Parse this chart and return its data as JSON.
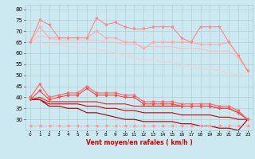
{
  "xlabel": "Vent moyen/en rafales ( km/h )",
  "x": [
    0,
    1,
    2,
    3,
    4,
    5,
    6,
    7,
    8,
    9,
    10,
    11,
    12,
    13,
    14,
    15,
    16,
    17,
    18,
    19,
    20,
    21,
    22,
    23
  ],
  "background_color": "#cce8f0",
  "grid_color": "#aacccc",
  "line_pink_top": [
    65,
    75,
    73,
    67,
    67,
    67,
    67,
    76,
    73,
    74,
    72,
    71,
    71,
    72,
    72,
    72,
    67,
    65,
    72,
    72,
    72,
    65,
    59,
    52
  ],
  "line_pink_mid1": [
    65,
    72,
    67,
    67,
    67,
    67,
    67,
    70,
    67,
    67,
    65,
    65,
    62,
    65,
    65,
    65,
    65,
    65,
    64,
    64,
    64,
    65,
    59,
    52
  ],
  "line_pink_mid2": [
    65,
    68,
    67,
    66,
    66,
    66,
    66,
    66,
    65,
    65,
    64,
    64,
    63,
    63,
    63,
    63,
    62,
    62,
    62,
    61,
    61,
    61,
    58,
    52
  ],
  "line_pink_low": [
    65,
    65,
    64,
    64,
    63,
    63,
    62,
    62,
    61,
    60,
    59,
    58,
    57,
    57,
    56,
    56,
    55,
    54,
    53,
    53,
    52,
    51,
    50,
    52
  ],
  "line_red_top": [
    40,
    46,
    40,
    41,
    42,
    42,
    45,
    42,
    42,
    42,
    41,
    41,
    38,
    38,
    38,
    38,
    37,
    37,
    37,
    37,
    36,
    36,
    34,
    30
  ],
  "line_red_mid1": [
    39,
    43,
    39,
    40,
    41,
    41,
    44,
    41,
    41,
    41,
    40,
    40,
    37,
    37,
    37,
    37,
    36,
    36,
    36,
    36,
    35,
    35,
    33,
    30
  ],
  "line_red_mid2": [
    39,
    40,
    38,
    38,
    38,
    38,
    38,
    38,
    37,
    37,
    37,
    36,
    36,
    36,
    36,
    36,
    36,
    36,
    36,
    36,
    35,
    35,
    33,
    30
  ],
  "line_red_low": [
    39,
    39,
    37,
    37,
    37,
    37,
    36,
    36,
    35,
    35,
    34,
    34,
    33,
    33,
    33,
    33,
    32,
    32,
    32,
    32,
    31,
    31,
    30,
    30
  ],
  "line_dark_red": [
    39,
    39,
    36,
    36,
    35,
    35,
    33,
    33,
    32,
    31,
    30,
    30,
    29,
    29,
    29,
    29,
    28,
    28,
    27,
    27,
    26,
    26,
    25,
    30
  ],
  "line_dashed_bottom": [
    27,
    27,
    27,
    27,
    27,
    27,
    27,
    27,
    27,
    27,
    27,
    27,
    27,
    27,
    27,
    27,
    27,
    27,
    27,
    27,
    27,
    27,
    27,
    27
  ],
  "ylim": [
    25,
    82
  ],
  "yticks": [
    30,
    35,
    40,
    45,
    50,
    55,
    60,
    65,
    70,
    75,
    80
  ],
  "color_pink_top": "#ff8888",
  "color_pink_mid1": "#ffaaaa",
  "color_pink_mid2": "#ffbbbb",
  "color_pink_low": "#ffcccc",
  "color_red_top": "#ff6666",
  "color_red_mid1": "#ff4444",
  "color_red_mid2": "#dd2222",
  "color_red_low": "#cc0000",
  "color_dark_red": "#990000",
  "color_dashed": "#ff9999"
}
